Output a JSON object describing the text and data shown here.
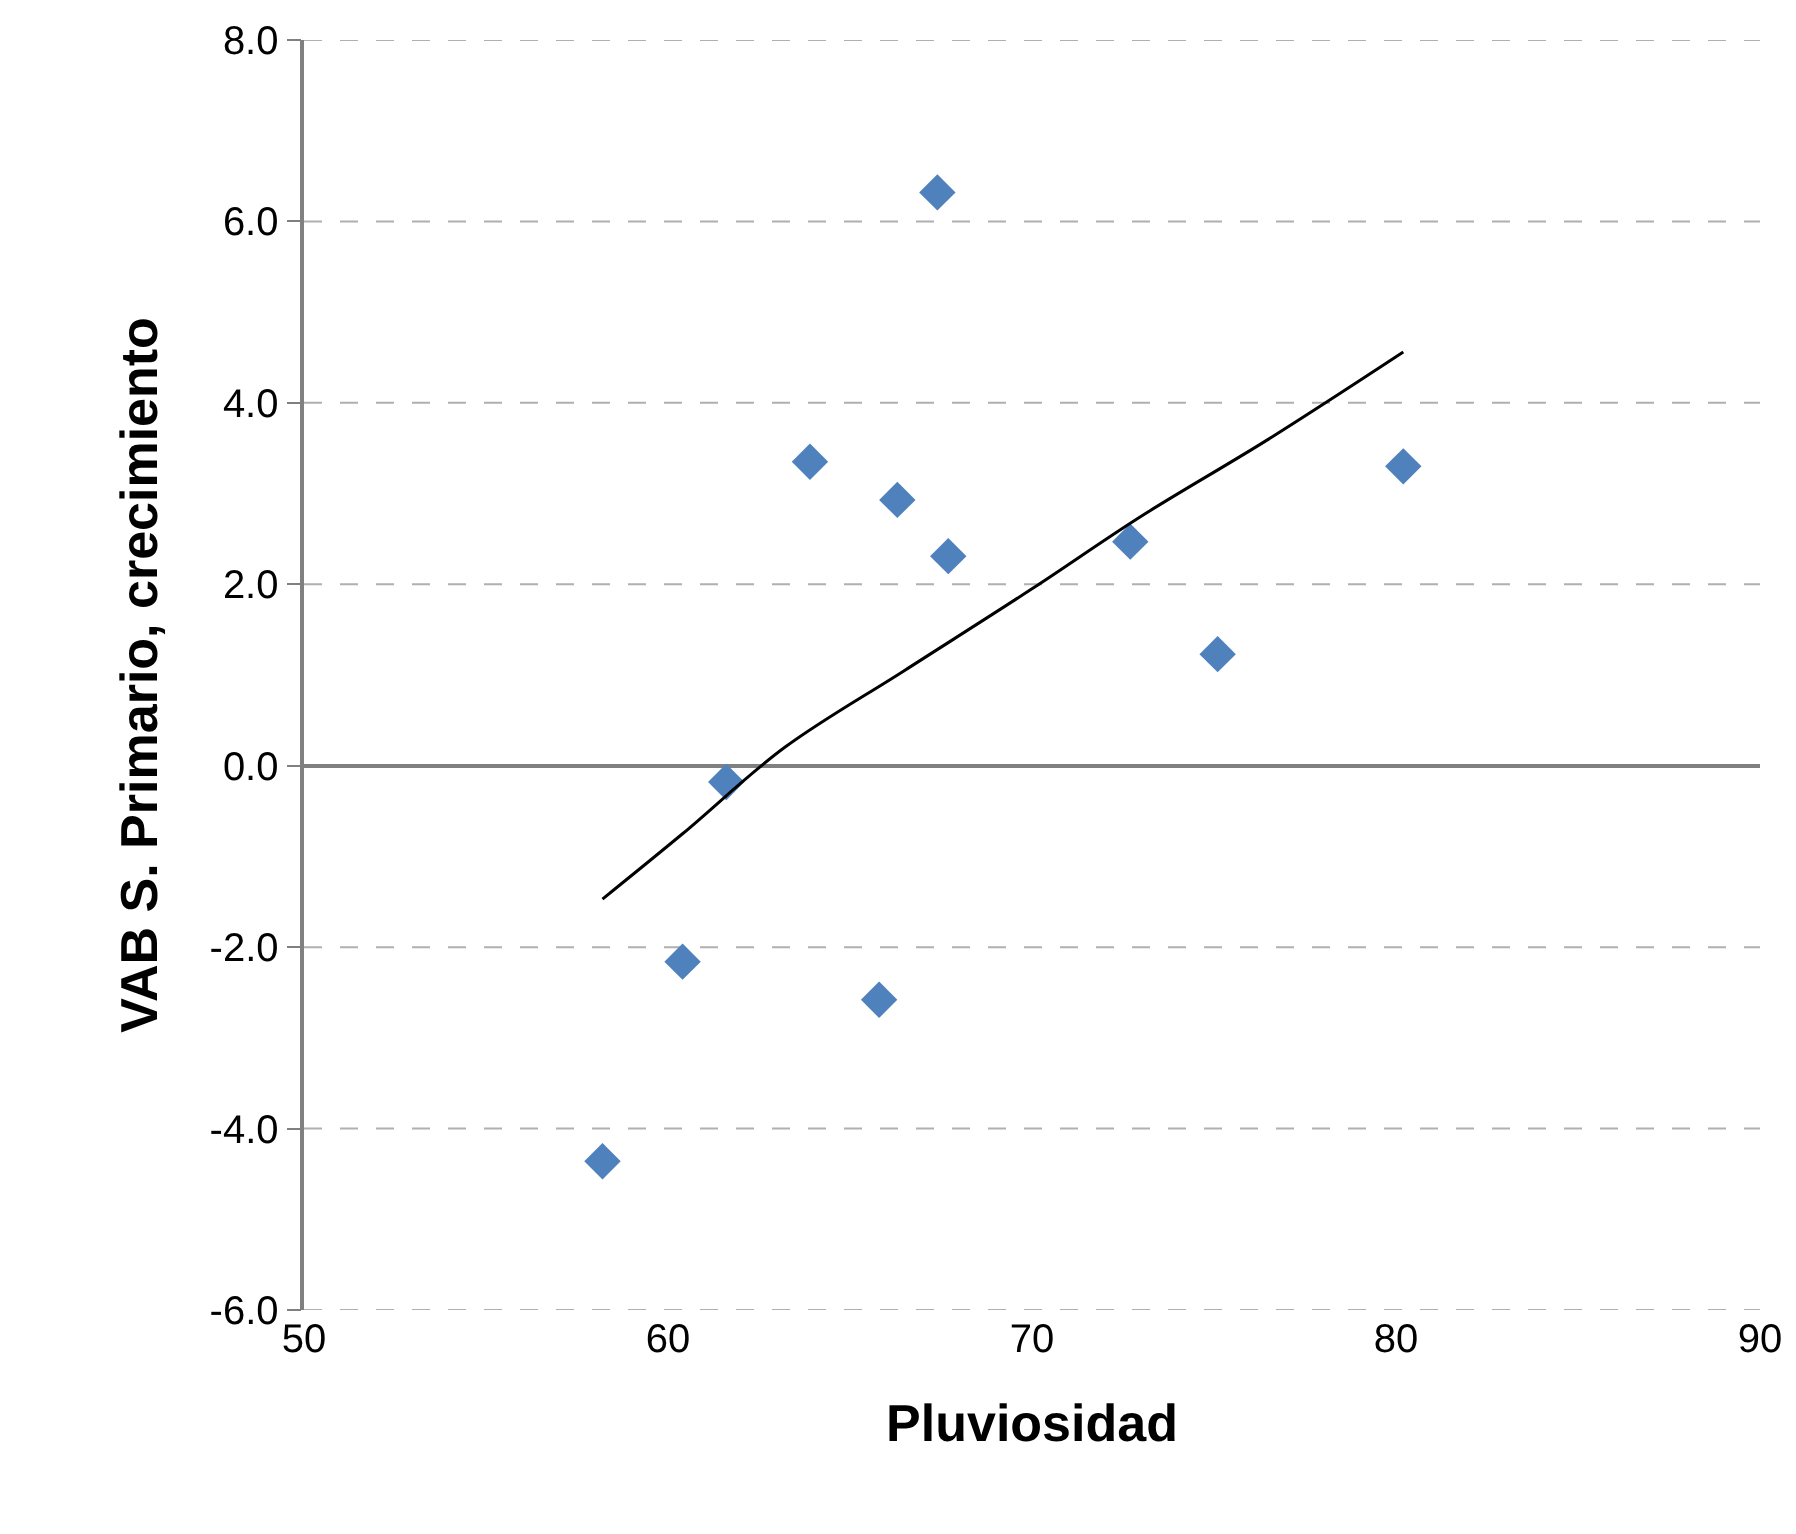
{
  "chart_data": {
    "type": "scatter",
    "xlabel": "Pluviosidad",
    "ylabel": "VAB S. Primario, crecimiento",
    "x": [
      58.2,
      60.4,
      61.6,
      63.9,
      66.3,
      65.8,
      67.4,
      67.7,
      72.7,
      75.1,
      80.2
    ],
    "series": [
      {
        "color": "#4f81bd",
        "marker": "diamond",
        "values": [
          -4.36,
          -2.16,
          -0.18,
          3.35,
          2.93,
          -2.58,
          6.32,
          2.31,
          2.47,
          1.23,
          3.3
        ]
      },
      {
        "type": "line",
        "marker": "none",
        "color": "#000000",
        "x": [
          58.2,
          60.4,
          63.2,
          66.5,
          70,
          73,
          76.5,
          80.2
        ],
        "values": [
          -1.47,
          -0.75,
          0.2,
          1.05,
          1.95,
          2.75,
          3.6,
          4.56
        ]
      }
    ],
    "xlim": [
      50,
      90
    ],
    "xticks": [
      50,
      60,
      70,
      80,
      90
    ],
    "ylim": [
      -6,
      8
    ],
    "yticks": [
      {
        "value": -6,
        "label": "-6.0"
      },
      {
        "value": -4,
        "label": "-4.0"
      },
      {
        "value": -2,
        "label": "-2.0"
      },
      {
        "value": 0,
        "label": "0.0"
      },
      {
        "value": 2,
        "label": "2.0"
      },
      {
        "value": 4,
        "label": "4.0"
      },
      {
        "value": 6,
        "label": "6.0"
      },
      {
        "value": 8,
        "label": "8.0"
      }
    ],
    "grid": "y"
  }
}
